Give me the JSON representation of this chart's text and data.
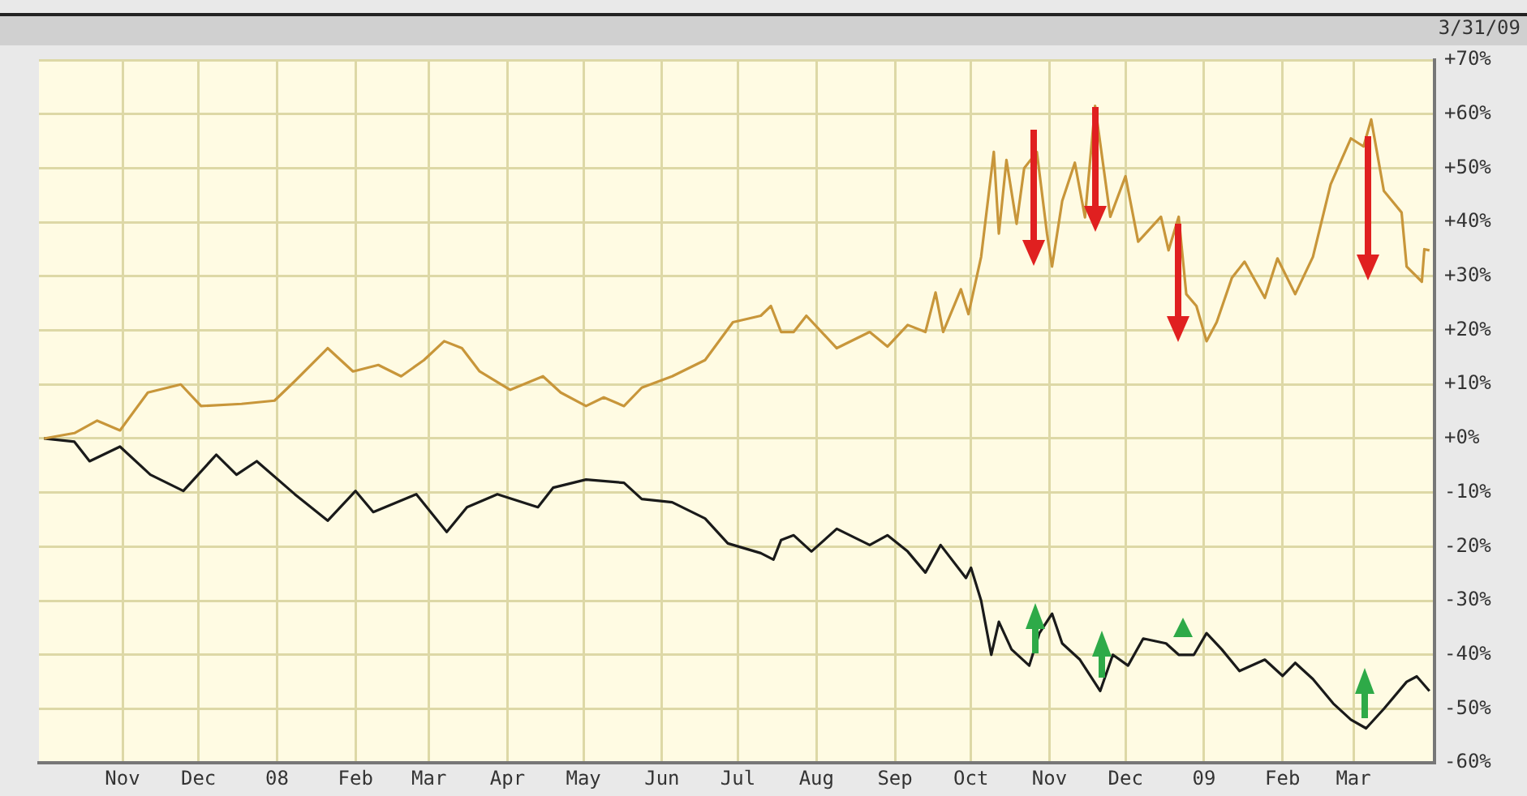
{
  "chart_data": {
    "type": "line",
    "annotations": [
      "3/31/09"
    ],
    "grid": true,
    "xlim": [
      "2007-09-29",
      "2009-04-02"
    ],
    "ylim": [
      -60,
      70
    ],
    "yticks": [
      {
        "value": 70,
        "label": "+70%"
      },
      {
        "value": 60,
        "label": "+60%"
      },
      {
        "value": 50,
        "label": "+50%"
      },
      {
        "value": 40,
        "label": "+40%"
      },
      {
        "value": 30,
        "label": "+30%"
      },
      {
        "value": 20,
        "label": "+20%"
      },
      {
        "value": 10,
        "label": "+10%"
      },
      {
        "value": 0,
        "label": "+0%"
      },
      {
        "value": -10,
        "label": "-10%"
      },
      {
        "value": -20,
        "label": "-20%"
      },
      {
        "value": -30,
        "label": "-30%"
      },
      {
        "value": -40,
        "label": "-40%"
      },
      {
        "value": -50,
        "label": "-50%"
      },
      {
        "value": -60,
        "label": "-60%"
      }
    ],
    "xticks": [
      {
        "value": "2007-11-01",
        "label": "Nov"
      },
      {
        "value": "2007-12-01",
        "label": "Dec"
      },
      {
        "value": "2008-01-01",
        "label": "08"
      },
      {
        "value": "2008-02-01",
        "label": "Feb"
      },
      {
        "value": "2008-03-01",
        "label": "Mar"
      },
      {
        "value": "2008-04-01",
        "label": "Apr"
      },
      {
        "value": "2008-05-01",
        "label": "May"
      },
      {
        "value": "2008-06-01",
        "label": "Jun"
      },
      {
        "value": "2008-07-01",
        "label": "Jul"
      },
      {
        "value": "2008-08-01",
        "label": "Aug"
      },
      {
        "value": "2008-09-01",
        "label": "Sep"
      },
      {
        "value": "2008-10-01",
        "label": "Oct"
      },
      {
        "value": "2008-11-01",
        "label": "Nov"
      },
      {
        "value": "2008-12-01",
        "label": "Dec"
      },
      {
        "value": "2009-01-01",
        "label": "09"
      },
      {
        "value": "2009-02-01",
        "label": "Feb"
      },
      {
        "value": "2009-03-01",
        "label": "Mar"
      }
    ],
    "series": [
      {
        "color": "#c8963a",
        "x": [
          "2007-10-01",
          "2007-10-13",
          "2007-10-22",
          "2007-10-31",
          "2007-11-11",
          "2007-11-24",
          "2007-12-02",
          "2007-12-18",
          "2007-12-31",
          "2008-01-08",
          "2008-01-21",
          "2008-01-31",
          "2008-02-10",
          "2008-02-19",
          "2008-02-28",
          "2008-03-07",
          "2008-03-14",
          "2008-03-21",
          "2008-04-02",
          "2008-04-15",
          "2008-04-22",
          "2008-05-02",
          "2008-05-09",
          "2008-05-17",
          "2008-05-24",
          "2008-06-05",
          "2008-06-18",
          "2008-06-29",
          "2008-07-10",
          "2008-07-14",
          "2008-07-18",
          "2008-07-23",
          "2008-07-28",
          "2008-08-09",
          "2008-08-22",
          "2008-08-29",
          "2008-09-06",
          "2008-09-13",
          "2008-09-17",
          "2008-09-20",
          "2008-09-27",
          "2008-09-30",
          "2008-10-05",
          "2008-10-10",
          "2008-10-12",
          "2008-10-15",
          "2008-10-19",
          "2008-10-22",
          "2008-10-27",
          "2008-10-31",
          "2008-11-02",
          "2008-11-06",
          "2008-11-11",
          "2008-11-15",
          "2008-11-19",
          "2008-11-25",
          "2008-12-01",
          "2008-12-06",
          "2008-12-15",
          "2008-12-18",
          "2008-12-22",
          "2008-12-25",
          "2008-12-29",
          "2009-01-02",
          "2009-01-06",
          "2009-01-12",
          "2009-01-17",
          "2009-01-25",
          "2009-01-30",
          "2009-02-06",
          "2009-02-13",
          "2009-02-20",
          "2009-02-28",
          "2009-03-05",
          "2009-03-08",
          "2009-03-13",
          "2009-03-20",
          "2009-03-22",
          "2009-03-28",
          "2009-03-29",
          "2009-03-31"
        ],
        "values": [
          0,
          1,
          3.3,
          1.5,
          8.5,
          10,
          6,
          6.4,
          7,
          10.6,
          16.7,
          12.4,
          13.6,
          11.5,
          14.5,
          18,
          16.7,
          12.4,
          9,
          11.5,
          8.5,
          6,
          7.6,
          6,
          9.4,
          11.5,
          14.5,
          21.5,
          22.7,
          24.5,
          19.7,
          19.7,
          22.7,
          16.7,
          19.7,
          17,
          21,
          19.7,
          27,
          19.7,
          27.6,
          23,
          33.6,
          53,
          37.9,
          51.5,
          39.7,
          50,
          53,
          37.9,
          31.8,
          43.9,
          51,
          40.9,
          61.5,
          41,
          48.5,
          36.4,
          41,
          34.8,
          41,
          26.7,
          24.5,
          18,
          21.5,
          29.7,
          32.7,
          26,
          33.3,
          26.7,
          33.6,
          47,
          55.5,
          54,
          59,
          45.8,
          41.8,
          31.8,
          29,
          35,
          34.8
        ]
      },
      {
        "color": "#1a1a1a",
        "x": [
          "2007-10-01",
          "2007-10-13",
          "2007-10-19",
          "2007-10-31",
          "2007-11-12",
          "2007-11-25",
          "2007-12-08",
          "2007-12-16",
          "2007-12-24",
          "2008-01-08",
          "2008-01-21",
          "2008-02-01",
          "2008-02-08",
          "2008-02-25",
          "2008-03-08",
          "2008-03-16",
          "2008-03-28",
          "2008-04-13",
          "2008-04-19",
          "2008-05-02",
          "2008-05-17",
          "2008-05-24",
          "2008-06-05",
          "2008-06-18",
          "2008-06-27",
          "2008-07-10",
          "2008-07-15",
          "2008-07-18",
          "2008-07-23",
          "2008-07-30",
          "2008-08-09",
          "2008-08-22",
          "2008-08-29",
          "2008-09-06",
          "2008-09-13",
          "2008-09-19",
          "2008-09-29",
          "2008-10-01",
          "2008-10-05",
          "2008-10-09",
          "2008-10-12",
          "2008-10-17",
          "2008-10-24",
          "2008-10-28",
          "2008-11-02",
          "2008-11-06",
          "2008-11-13",
          "2008-11-21",
          "2008-11-26",
          "2008-12-02",
          "2008-12-08",
          "2008-12-17",
          "2008-12-22",
          "2008-12-28",
          "2009-01-02",
          "2009-01-08",
          "2009-01-15",
          "2009-01-25",
          "2009-02-01",
          "2009-02-06",
          "2009-02-13",
          "2009-02-21",
          "2009-02-28",
          "2009-03-06",
          "2009-03-13",
          "2009-03-22",
          "2009-03-26",
          "2009-03-31"
        ],
        "values": [
          0,
          -0.6,
          -4.2,
          -1.5,
          -6.7,
          -9.7,
          -3,
          -6.7,
          -4.2,
          -10.3,
          -15.2,
          -9.7,
          -13.6,
          -10.3,
          -17.3,
          -12.7,
          -10.3,
          -12.7,
          -9.1,
          -7.6,
          -8.2,
          -11.2,
          -11.8,
          -14.8,
          -19.4,
          -21.2,
          -22.4,
          -18.8,
          -17.9,
          -20.9,
          -16.7,
          -19.7,
          -17.9,
          -20.9,
          -24.8,
          -19.7,
          -25.8,
          -23.9,
          -30,
          -40,
          -33.9,
          -39,
          -42,
          -36,
          -32.4,
          -37.9,
          -40.9,
          -46.7,
          -40,
          -42,
          -37,
          -37.9,
          -40,
          -40,
          -36,
          -39,
          -43,
          -40.9,
          -43.9,
          -41.5,
          -44.5,
          -49,
          -52,
          -53.6,
          -50,
          -45,
          -44,
          -46.7
        ]
      }
    ]
  }
}
